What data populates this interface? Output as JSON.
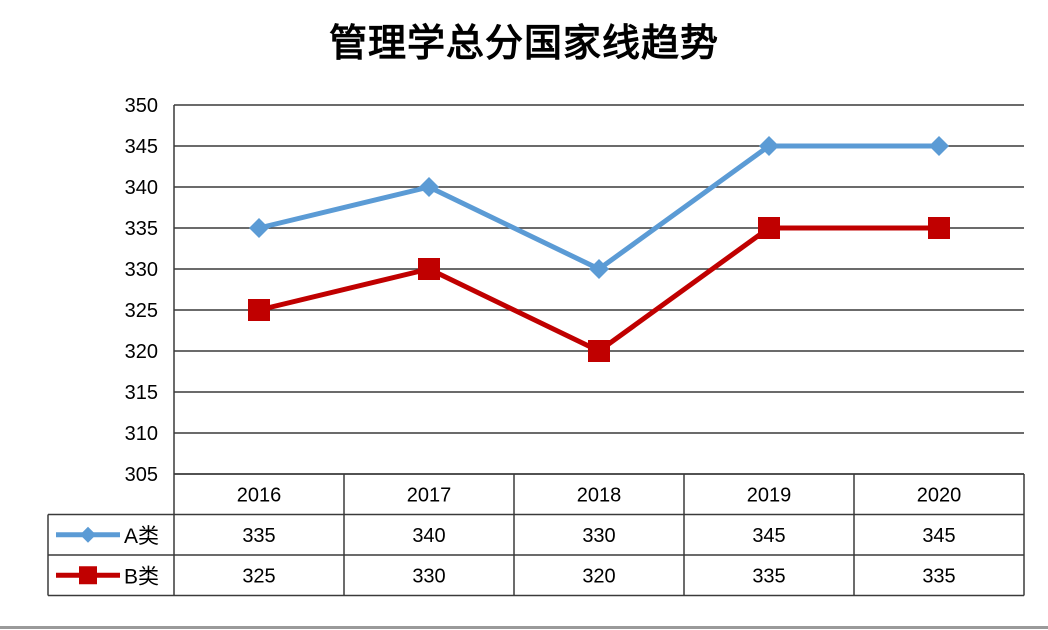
{
  "chart_data": {
    "type": "line",
    "title": "管理学总分国家线趋势",
    "categories": [
      "2016",
      "2017",
      "2018",
      "2019",
      "2020"
    ],
    "series": [
      {
        "name": "A类",
        "values": [
          335,
          340,
          330,
          345,
          345
        ],
        "color": "#5b9bd5",
        "marker": "diamond"
      },
      {
        "name": "B类",
        "values": [
          325,
          330,
          320,
          335,
          335
        ],
        "color": "#c00000",
        "marker": "square"
      }
    ],
    "ylim": [
      305,
      350
    ],
    "yticks": [
      "305",
      "310",
      "315",
      "320",
      "325",
      "330",
      "335",
      "340",
      "345",
      "350"
    ],
    "grid": true,
    "legend_placement": "data-table",
    "data_table": true
  }
}
